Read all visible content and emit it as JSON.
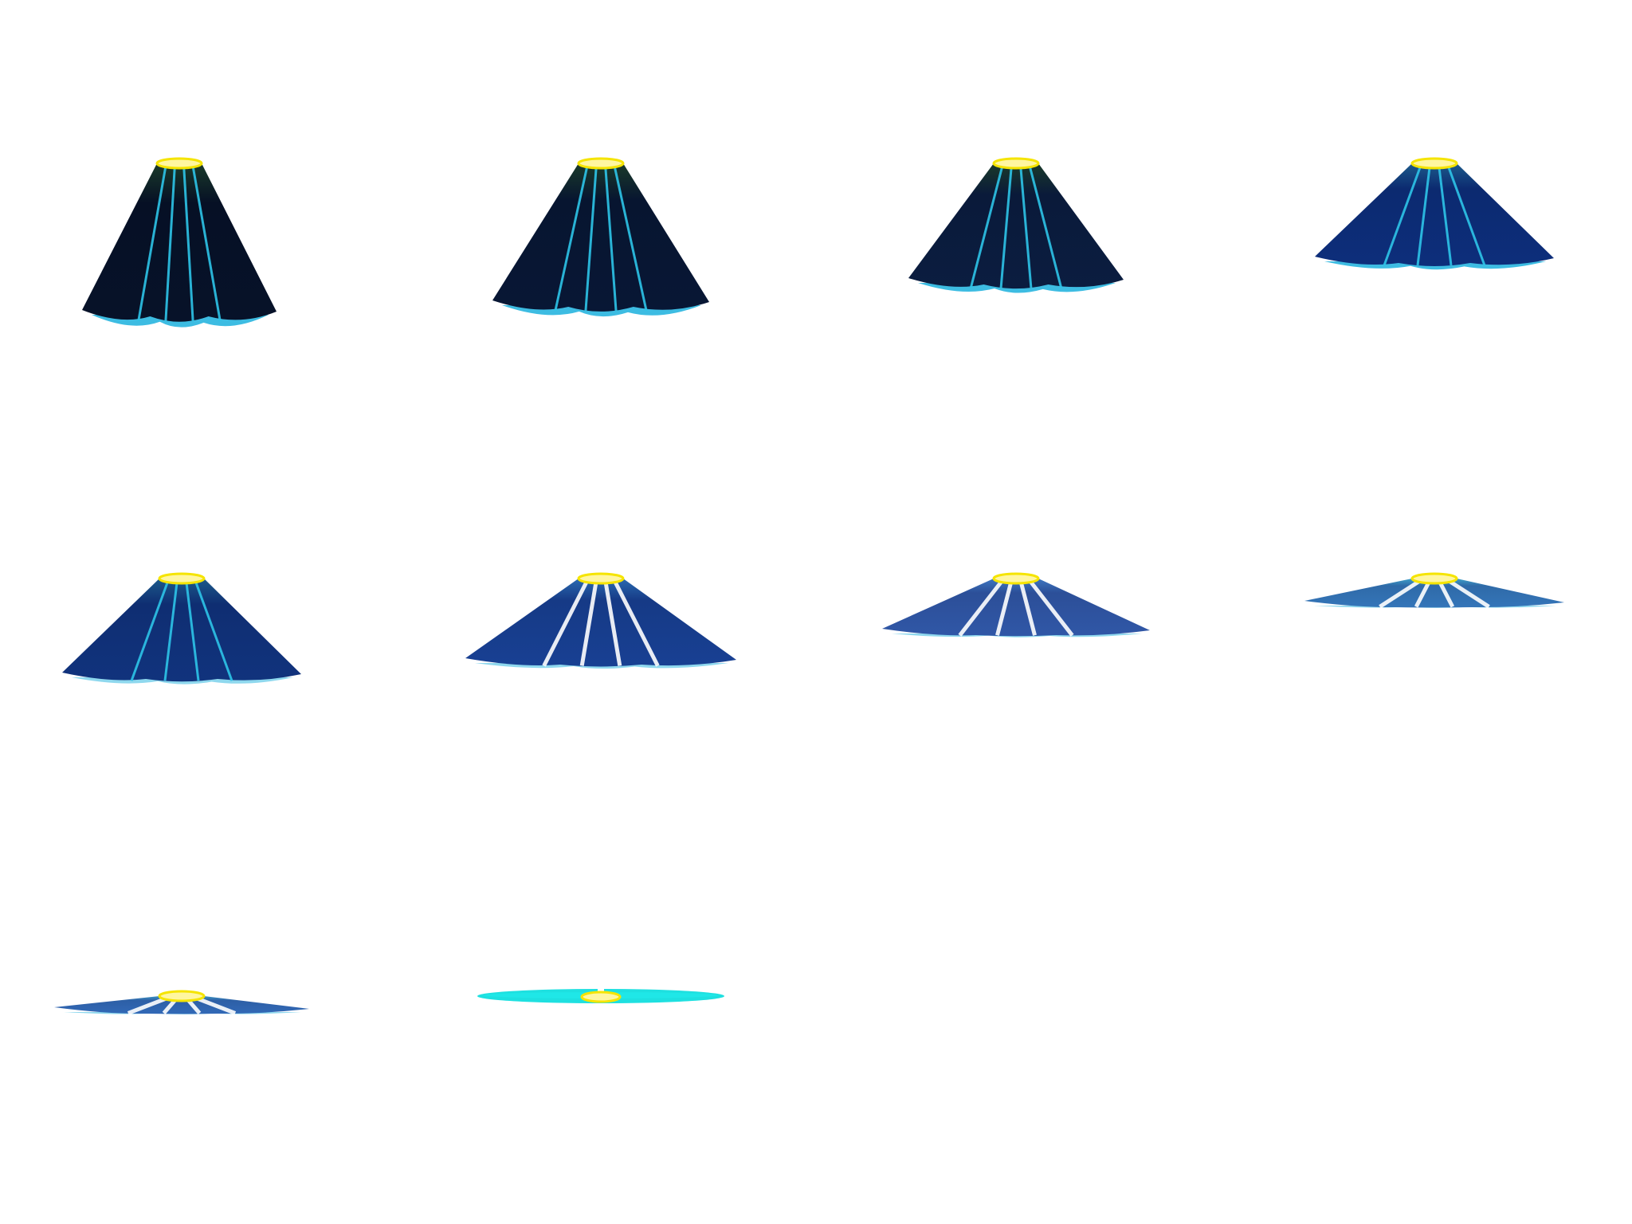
{
  "figure": {
    "background_color": "#ffffff",
    "grid": {
      "rows": 3,
      "columns": 4,
      "panel_count": 10
    },
    "colors": {
      "top_ring": "#f5e400",
      "top_ring_inner": "#fff6a0",
      "crease_highlight": "#2ec4e8",
      "underside": "#33b8e0",
      "flat_disc": "#1ee0e0",
      "gap": "#ffffff"
    },
    "panels": [
      {
        "state": "deployed",
        "folding_fraction": 0.0,
        "panel_color": "#061025",
        "glow_color": "#1a3a2a"
      },
      {
        "state": "folding",
        "folding_fraction": 0.1,
        "panel_color": "#071530",
        "glow_color": "#1a3a2a"
      },
      {
        "state": "folding",
        "folding_fraction": 0.2,
        "panel_color": "#0a1a3a",
        "glow_color": "#1a3a2a"
      },
      {
        "state": "folding",
        "folding_fraction": 0.35,
        "panel_color": "#0c2a70",
        "glow_color": "#1c5a8a"
      },
      {
        "state": "folding",
        "folding_fraction": 0.45,
        "panel_color": "#0f2e72",
        "glow_color": "#1c5a8a"
      },
      {
        "state": "folding",
        "folding_fraction": 0.55,
        "panel_color": "#163a86",
        "glow_color": "#2a6ab0"
      },
      {
        "state": "folding",
        "folding_fraction": 0.7,
        "panel_color": "#2c4f98",
        "glow_color": "#3d76c0"
      },
      {
        "state": "folding",
        "folding_fraction": 0.82,
        "panel_color": "#2f6aa8",
        "glow_color": "#3fa0c8"
      },
      {
        "state": "folding",
        "folding_fraction": 0.92,
        "panel_color": "#2d5fa6",
        "glow_color": "#3f96c4"
      },
      {
        "state": "flat",
        "folding_fraction": 1.0,
        "panel_color": "#1ee0e0",
        "glow_color": "#1ee0e0"
      }
    ]
  }
}
